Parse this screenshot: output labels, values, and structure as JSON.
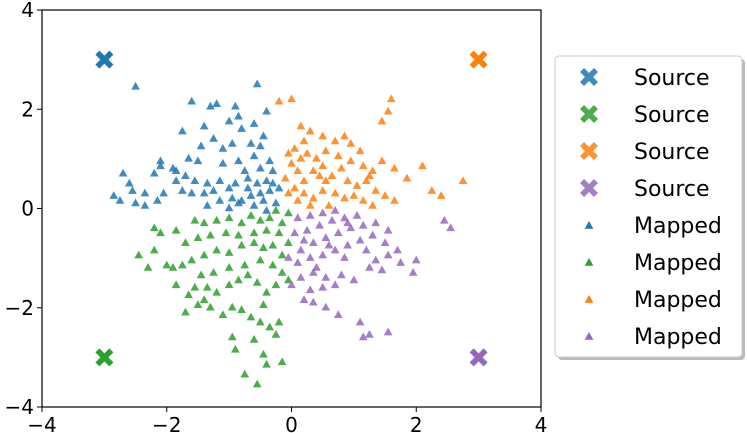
{
  "chart_data": {
    "type": "scatter",
    "title": "",
    "xlabel": "",
    "ylabel": "",
    "xlim": [
      -4,
      4
    ],
    "ylim": [
      -4,
      4
    ],
    "xticks": [
      -4,
      -2,
      0,
      2,
      4
    ],
    "yticks": [
      -4,
      -2,
      0,
      2,
      4
    ],
    "xtick_labels": [
      "−4",
      "−2",
      "0",
      "2",
      "4"
    ],
    "ytick_labels": [
      "−4",
      "−2",
      "0",
      "2",
      "4"
    ],
    "grid": false,
    "legend_position": "right-outside",
    "sources": [
      {
        "name": "Source",
        "color": "#1f77b4",
        "marker": "x-mark",
        "x": -3,
        "y": 3
      },
      {
        "name": "Source",
        "color": "#2ca02c",
        "marker": "x-mark",
        "x": -3,
        "y": -3
      },
      {
        "name": "Source",
        "color": "#ff7f0e",
        "marker": "x-mark",
        "x": 3,
        "y": 3
      },
      {
        "name": "Source",
        "color": "#9467bd",
        "marker": "x-mark",
        "x": 3,
        "y": -3
      }
    ],
    "series": [
      {
        "name": "Mapped",
        "color": "#1f77b4",
        "marker": "triangle",
        "points": [
          [
            -2.5,
            2.45
          ],
          [
            -0.55,
            2.5
          ],
          [
            -1.6,
            2.15
          ],
          [
            -1.3,
            2.05
          ],
          [
            -1.2,
            2.1
          ],
          [
            -1.0,
            1.75
          ],
          [
            -0.85,
            1.85
          ],
          [
            -0.9,
            2.05
          ],
          [
            -0.4,
            1.95
          ],
          [
            -0.6,
            1.7
          ],
          [
            -1.4,
            1.65
          ],
          [
            -1.75,
            1.55
          ],
          [
            -0.8,
            1.6
          ],
          [
            -0.45,
            1.45
          ],
          [
            -0.5,
            1.25
          ],
          [
            -0.65,
            1.3
          ],
          [
            -1.25,
            1.4
          ],
          [
            -1.1,
            1.2
          ],
          [
            -0.95,
            1.3
          ],
          [
            -1.45,
            1.25
          ],
          [
            -1.65,
            1.0
          ],
          [
            -2.1,
            0.95
          ],
          [
            -2.1,
            0.85
          ],
          [
            -1.9,
            0.8
          ],
          [
            -1.85,
            0.75
          ],
          [
            -2.2,
            0.7
          ],
          [
            -1.7,
            0.65
          ],
          [
            -1.55,
            0.55
          ],
          [
            -1.35,
            0.5
          ],
          [
            -1.5,
            0.95
          ],
          [
            -1.1,
            0.9
          ],
          [
            -0.85,
            0.95
          ],
          [
            -0.75,
            0.75
          ],
          [
            -0.5,
            0.8
          ],
          [
            -0.35,
            0.95
          ],
          [
            -0.6,
            1.05
          ],
          [
            -0.3,
            0.75
          ],
          [
            -0.4,
            0.55
          ],
          [
            -0.55,
            0.5
          ],
          [
            -0.7,
            0.6
          ],
          [
            -0.9,
            0.5
          ],
          [
            -1.0,
            0.4
          ],
          [
            -1.15,
            0.55
          ],
          [
            -1.25,
            0.35
          ],
          [
            -1.4,
            0.3
          ],
          [
            -1.6,
            0.3
          ],
          [
            -1.75,
            0.35
          ],
          [
            -2.05,
            0.3
          ],
          [
            -2.35,
            0.3
          ],
          [
            -2.55,
            0.35
          ],
          [
            -2.75,
            0.15
          ],
          [
            -2.85,
            0.25
          ],
          [
            -2.5,
            0.1
          ],
          [
            -2.35,
            0.05
          ],
          [
            -2.15,
            0.15
          ],
          [
            -1.35,
            0.05
          ],
          [
            -1.15,
            0.15
          ],
          [
            -0.95,
            0.2
          ],
          [
            -0.8,
            0.15
          ],
          [
            -0.65,
            0.25
          ],
          [
            -0.5,
            0.3
          ],
          [
            -0.35,
            0.35
          ],
          [
            -0.2,
            0.4
          ],
          [
            -0.45,
            0.15
          ],
          [
            -0.25,
            0.1
          ],
          [
            -0.6,
            0.05
          ],
          [
            -0.85,
            0.1
          ],
          [
            -1.0,
            0.0
          ],
          [
            -0.4,
            -0.05
          ],
          [
            -0.3,
            0.5
          ],
          [
            -0.7,
            0.4
          ],
          [
            -2.7,
            0.7
          ],
          [
            -2.6,
            0.5
          ],
          [
            -1.85,
            0.55
          ]
        ]
      },
      {
        "name": "Mapped",
        "color": "#2ca02c",
        "marker": "triangle",
        "points": [
          [
            -0.55,
            -3.55
          ],
          [
            -0.75,
            -3.35
          ],
          [
            -0.9,
            -2.85
          ],
          [
            -0.15,
            -3.1
          ],
          [
            -0.4,
            -3.15
          ],
          [
            -0.45,
            -2.95
          ],
          [
            -0.6,
            -2.65
          ],
          [
            -0.25,
            -2.55
          ],
          [
            -0.35,
            -2.4
          ],
          [
            -0.5,
            -2.3
          ],
          [
            -0.65,
            -2.2
          ],
          [
            -0.8,
            -2.05
          ],
          [
            -0.95,
            -2.0
          ],
          [
            -1.1,
            -2.15
          ],
          [
            -1.3,
            -2.0
          ],
          [
            -1.4,
            -1.85
          ],
          [
            -1.5,
            -1.95
          ],
          [
            -1.65,
            -1.75
          ],
          [
            -1.55,
            -1.6
          ],
          [
            -1.35,
            -1.6
          ],
          [
            -1.2,
            -1.7
          ],
          [
            -1.0,
            -1.55
          ],
          [
            -0.85,
            -1.45
          ],
          [
            -0.7,
            -1.35
          ],
          [
            -0.55,
            -1.5
          ],
          [
            -0.4,
            -1.7
          ],
          [
            -0.25,
            -1.55
          ],
          [
            -0.15,
            -1.3
          ],
          [
            -0.05,
            -1.45
          ],
          [
            -0.3,
            -1.15
          ],
          [
            -0.5,
            -1.05
          ],
          [
            -0.75,
            -1.15
          ],
          [
            -1.0,
            -1.2
          ],
          [
            -1.25,
            -1.3
          ],
          [
            -1.45,
            -1.35
          ],
          [
            -1.75,
            -1.15
          ],
          [
            -1.9,
            -1.2
          ],
          [
            -2.0,
            -1.15
          ],
          [
            -2.3,
            -1.2
          ],
          [
            -2.45,
            -0.95
          ],
          [
            -1.85,
            -1.55
          ],
          [
            -1.6,
            -1.05
          ],
          [
            -1.4,
            -0.95
          ],
          [
            -1.2,
            -0.85
          ],
          [
            -1.0,
            -0.9
          ],
          [
            -0.8,
            -0.75
          ],
          [
            -0.6,
            -0.7
          ],
          [
            -0.45,
            -0.8
          ],
          [
            -0.3,
            -0.75
          ],
          [
            -0.15,
            -0.95
          ],
          [
            -0.05,
            -0.7
          ],
          [
            -0.2,
            -0.5
          ],
          [
            -0.4,
            -0.45
          ],
          [
            -0.6,
            -0.5
          ],
          [
            -0.85,
            -0.55
          ],
          [
            -1.05,
            -0.5
          ],
          [
            -1.3,
            -0.55
          ],
          [
            -1.5,
            -0.6
          ],
          [
            -1.7,
            -0.7
          ],
          [
            -1.85,
            -0.45
          ],
          [
            -2.1,
            -0.5
          ],
          [
            -2.2,
            -0.85
          ],
          [
            -1.4,
            -0.3
          ],
          [
            -1.2,
            -0.25
          ],
          [
            -1.0,
            -0.2
          ],
          [
            -0.8,
            -0.3
          ],
          [
            -0.65,
            -0.15
          ],
          [
            -0.5,
            -0.25
          ],
          [
            -0.35,
            -0.2
          ],
          [
            -0.15,
            -0.3
          ],
          [
            -0.05,
            -0.1
          ],
          [
            -0.25,
            -0.05
          ],
          [
            -1.55,
            -0.25
          ],
          [
            -2.2,
            -0.4
          ],
          [
            -1.7,
            -2.1
          ],
          [
            -0.95,
            -2.6
          ],
          [
            -0.2,
            -2.3
          ],
          [
            -0.45,
            -1.95
          ]
        ]
      },
      {
        "name": "Mapped",
        "color": "#ff7f0e",
        "marker": "triangle",
        "points": [
          [
            1.6,
            2.2
          ],
          [
            1.55,
            1.95
          ],
          [
            1.45,
            1.75
          ],
          [
            -0.2,
            2.15
          ],
          [
            0.0,
            2.2
          ],
          [
            0.15,
            1.65
          ],
          [
            0.3,
            1.55
          ],
          [
            0.5,
            1.45
          ],
          [
            0.7,
            1.35
          ],
          [
            0.85,
            1.45
          ],
          [
            0.95,
            1.3
          ],
          [
            1.1,
            1.15
          ],
          [
            0.2,
            1.35
          ],
          [
            0.05,
            1.2
          ],
          [
            -0.05,
            1.1
          ],
          [
            0.25,
            1.1
          ],
          [
            0.4,
            1.0
          ],
          [
            0.55,
            1.15
          ],
          [
            0.75,
            1.05
          ],
          [
            0.95,
            0.95
          ],
          [
            1.15,
            0.85
          ],
          [
            1.3,
            0.75
          ],
          [
            1.45,
            0.95
          ],
          [
            1.65,
            0.8
          ],
          [
            2.1,
            0.85
          ],
          [
            1.85,
            0.6
          ],
          [
            2.25,
            0.35
          ],
          [
            2.4,
            0.25
          ],
          [
            2.75,
            0.55
          ],
          [
            0.0,
            0.9
          ],
          [
            0.1,
            0.75
          ],
          [
            0.2,
            0.55
          ],
          [
            0.35,
            0.75
          ],
          [
            0.5,
            0.85
          ],
          [
            0.65,
            0.65
          ],
          [
            0.8,
            0.8
          ],
          [
            0.9,
            0.55
          ],
          [
            1.05,
            0.45
          ],
          [
            1.2,
            0.55
          ],
          [
            1.35,
            0.35
          ],
          [
            1.5,
            0.25
          ],
          [
            1.65,
            0.15
          ],
          [
            0.05,
            0.4
          ],
          [
            0.2,
            0.3
          ],
          [
            0.35,
            0.2
          ],
          [
            0.5,
            0.35
          ],
          [
            0.7,
            0.3
          ],
          [
            0.85,
            0.2
          ],
          [
            1.0,
            0.25
          ],
          [
            1.15,
            0.15
          ],
          [
            1.3,
            0.05
          ],
          [
            -0.1,
            0.6
          ],
          [
            -0.05,
            0.3
          ],
          [
            0.1,
            0.15
          ],
          [
            0.3,
            0.05
          ],
          [
            0.6,
            0.05
          ],
          [
            1.25,
            0.65
          ],
          [
            0.55,
            0.55
          ],
          [
            0.15,
            1.0
          ],
          [
            0.45,
            0.65
          ]
        ]
      },
      {
        "name": "Mapped",
        "color": "#9467bd",
        "marker": "triangle",
        "points": [
          [
            1.55,
            -2.5
          ],
          [
            1.15,
            -2.6
          ],
          [
            1.25,
            -2.55
          ],
          [
            1.1,
            -2.3
          ],
          [
            0.75,
            -2.15
          ],
          [
            0.55,
            -2.0
          ],
          [
            0.35,
            -1.9
          ],
          [
            0.2,
            -1.85
          ],
          [
            0.3,
            -1.65
          ],
          [
            0.5,
            -1.6
          ],
          [
            0.7,
            -1.55
          ],
          [
            0.0,
            -1.55
          ],
          [
            0.15,
            -1.4
          ],
          [
            0.35,
            -1.3
          ],
          [
            0.55,
            -1.4
          ],
          [
            0.8,
            -1.35
          ],
          [
            1.0,
            -1.45
          ],
          [
            1.25,
            -1.2
          ],
          [
            1.35,
            -1.05
          ],
          [
            1.55,
            -0.95
          ],
          [
            1.75,
            -1.1
          ],
          [
            1.95,
            -1.3
          ],
          [
            2.0,
            -1.05
          ],
          [
            2.55,
            -0.4
          ],
          [
            2.45,
            -0.25
          ],
          [
            1.7,
            -0.85
          ],
          [
            1.5,
            -0.7
          ],
          [
            1.3,
            -0.55
          ],
          [
            1.1,
            -0.65
          ],
          [
            0.9,
            -0.75
          ],
          [
            0.7,
            -0.85
          ],
          [
            0.5,
            -0.95
          ],
          [
            0.3,
            -1.0
          ],
          [
            0.1,
            -1.1
          ],
          [
            -0.05,
            -1.0
          ],
          [
            0.15,
            -0.85
          ],
          [
            0.35,
            -0.7
          ],
          [
            0.55,
            -0.6
          ],
          [
            0.75,
            -0.5
          ],
          [
            0.95,
            -0.4
          ],
          [
            1.15,
            -0.35
          ],
          [
            1.35,
            -0.3
          ],
          [
            1.55,
            -0.45
          ],
          [
            0.05,
            -0.5
          ],
          [
            0.25,
            -0.45
          ],
          [
            0.45,
            -0.35
          ],
          [
            0.65,
            -0.25
          ],
          [
            0.85,
            -0.2
          ],
          [
            1.05,
            -0.15
          ],
          [
            0.1,
            -0.2
          ],
          [
            0.3,
            -0.15
          ],
          [
            0.5,
            -0.1
          ],
          [
            0.7,
            -0.05
          ],
          [
            0.9,
            -0.3
          ],
          [
            0.2,
            -0.65
          ],
          [
            0.6,
            -0.75
          ],
          [
            1.2,
            -0.85
          ],
          [
            0.4,
            -1.2
          ],
          [
            0.85,
            -1.0
          ],
          [
            1.45,
            -1.25
          ]
        ]
      }
    ]
  }
}
